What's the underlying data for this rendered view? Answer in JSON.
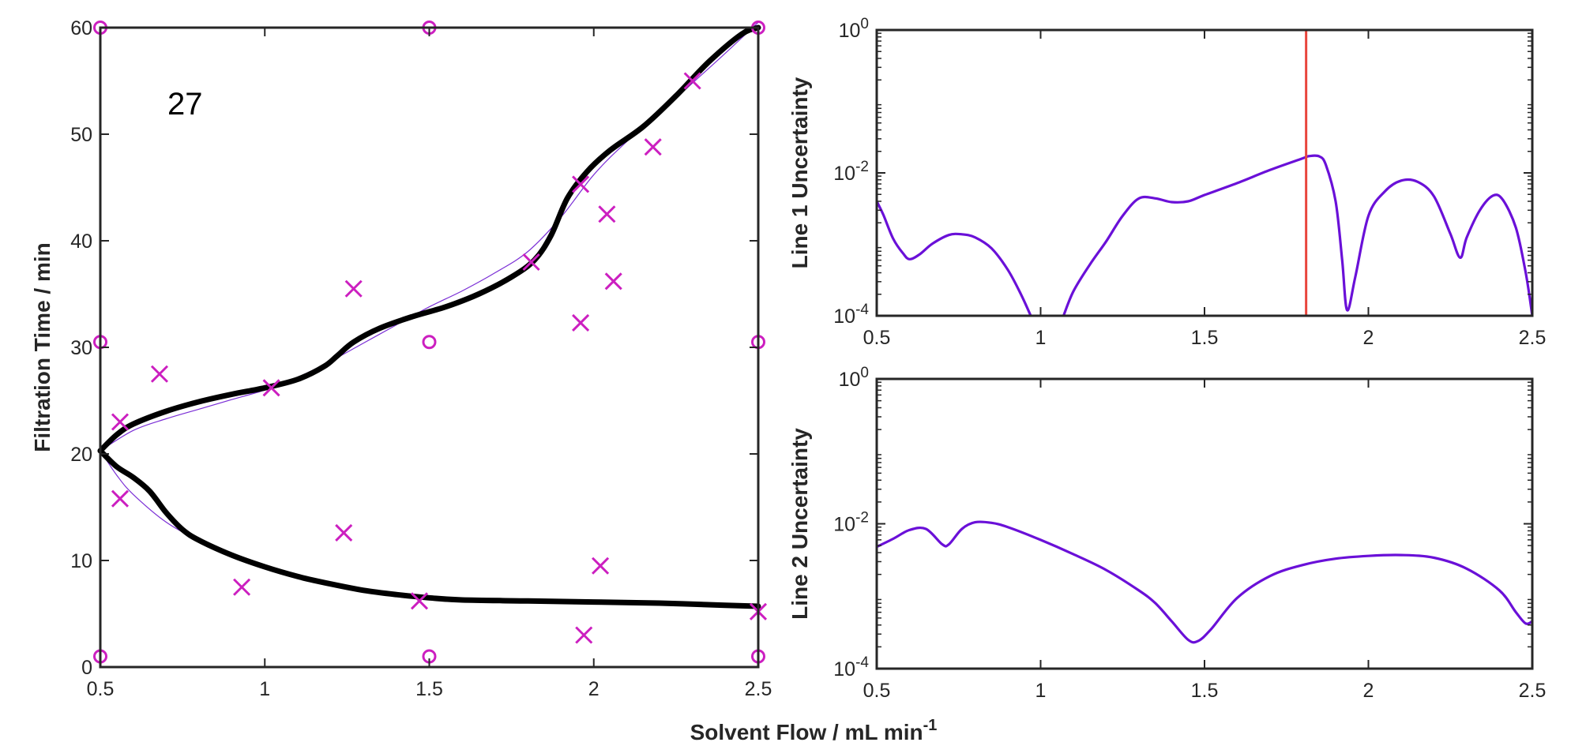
{
  "figure": {
    "xlabel_main": "Solvent Flow / mL min",
    "xlabel_sup": "-1"
  },
  "colors": {
    "axes": "#262626",
    "marker": "#cc1fc0",
    "fit_curve": "#000000",
    "true_curve": "#7b2fd6",
    "uncertainty": "#6a10d8",
    "cursor": "#e8453c"
  },
  "chart_data": [
    {
      "id": "main",
      "type": "scatter",
      "title": "",
      "xlabel": "",
      "ylabel": "Filtration Time / min",
      "xlim": [
        0.5,
        2.5
      ],
      "ylim": [
        0,
        60
      ],
      "xticks": [
        0.5,
        1,
        1.5,
        2,
        2.5
      ],
      "xtick_labels": [
        "0.5",
        "1",
        "1.5",
        "2",
        "2.5"
      ],
      "yticks": [
        0,
        10,
        20,
        30,
        40,
        50,
        60
      ],
      "ytick_labels": [
        "0",
        "10",
        "20",
        "30",
        "40",
        "50",
        "60"
      ],
      "annotation": "27",
      "grid": false,
      "circle_markers": [
        [
          0.5,
          60
        ],
        [
          1.5,
          60
        ],
        [
          2.5,
          60
        ],
        [
          0.5,
          30.5
        ],
        [
          1.5,
          30.5
        ],
        [
          2.5,
          30.5
        ],
        [
          0.5,
          1
        ],
        [
          1.5,
          1
        ],
        [
          2.5,
          1
        ]
      ],
      "cross_markers": [
        [
          0.56,
          23
        ],
        [
          0.56,
          15.8
        ],
        [
          0.68,
          27.5
        ],
        [
          0.93,
          7.5
        ],
        [
          1.02,
          26.2
        ],
        [
          1.24,
          12.6
        ],
        [
          1.27,
          35.5
        ],
        [
          1.47,
          6.2
        ],
        [
          1.81,
          38
        ],
        [
          1.96,
          32.3
        ],
        [
          1.96,
          45.3
        ],
        [
          1.97,
          3
        ],
        [
          2.02,
          9.5
        ],
        [
          2.04,
          42.5
        ],
        [
          2.06,
          36.2
        ],
        [
          2.18,
          48.8
        ],
        [
          2.3,
          55
        ],
        [
          2.5,
          5.2
        ]
      ],
      "fit_upper": [
        [
          0.5,
          20.3
        ],
        [
          0.55,
          21.8
        ],
        [
          0.6,
          22.8
        ],
        [
          0.7,
          24.0
        ],
        [
          0.8,
          24.9
        ],
        [
          0.9,
          25.6
        ],
        [
          1.0,
          26.2
        ],
        [
          1.1,
          27.0
        ],
        [
          1.18,
          28.2
        ],
        [
          1.22,
          29.2
        ],
        [
          1.27,
          30.5
        ],
        [
          1.35,
          31.8
        ],
        [
          1.45,
          32.9
        ],
        [
          1.55,
          33.8
        ],
        [
          1.65,
          35.0
        ],
        [
          1.75,
          36.6
        ],
        [
          1.82,
          38.2
        ],
        [
          1.87,
          40.5
        ],
        [
          1.92,
          44.0
        ],
        [
          1.98,
          46.5
        ],
        [
          2.05,
          48.5
        ],
        [
          2.15,
          50.7
        ],
        [
          2.25,
          53.6
        ],
        [
          2.35,
          56.8
        ],
        [
          2.45,
          59.4
        ],
        [
          2.5,
          60
        ]
      ],
      "fit_lower": [
        [
          0.5,
          20.3
        ],
        [
          0.55,
          18.8
        ],
        [
          0.6,
          17.8
        ],
        [
          0.65,
          16.5
        ],
        [
          0.7,
          14.5
        ],
        [
          0.75,
          12.9
        ],
        [
          0.8,
          11.9
        ],
        [
          0.9,
          10.5
        ],
        [
          1.0,
          9.4
        ],
        [
          1.1,
          8.5
        ],
        [
          1.2,
          7.8
        ],
        [
          1.3,
          7.2
        ],
        [
          1.4,
          6.8
        ],
        [
          1.5,
          6.5
        ],
        [
          1.6,
          6.3
        ],
        [
          1.8,
          6.2
        ],
        [
          2.0,
          6.1
        ],
        [
          2.2,
          6.0
        ],
        [
          2.4,
          5.8
        ],
        [
          2.5,
          5.7
        ]
      ],
      "true_upper": [
        [
          0.5,
          20.3
        ],
        [
          0.6,
          22.2
        ],
        [
          0.7,
          23.3
        ],
        [
          0.8,
          24.2
        ],
        [
          0.9,
          25.1
        ],
        [
          1.0,
          26.0
        ],
        [
          1.1,
          27.2
        ],
        [
          1.2,
          28.7
        ],
        [
          1.3,
          30.4
        ],
        [
          1.4,
          32.1
        ],
        [
          1.5,
          33.8
        ],
        [
          1.6,
          35.3
        ],
        [
          1.7,
          37.0
        ],
        [
          1.8,
          39.0
        ],
        [
          1.9,
          42.2
        ],
        [
          2.0,
          46.2
        ],
        [
          2.1,
          49.3
        ],
        [
          2.2,
          52.0
        ],
        [
          2.3,
          54.8
        ],
        [
          2.4,
          57.6
        ],
        [
          2.5,
          60.5
        ]
      ],
      "true_lower": [
        [
          0.5,
          20.3
        ],
        [
          0.55,
          18.0
        ],
        [
          0.6,
          16.2
        ],
        [
          0.7,
          13.6
        ],
        [
          0.8,
          11.9
        ],
        [
          0.9,
          10.6
        ],
        [
          1.0,
          9.5
        ],
        [
          1.1,
          8.6
        ],
        [
          1.2,
          7.9
        ],
        [
          1.3,
          7.3
        ],
        [
          1.4,
          6.9
        ],
        [
          1.5,
          6.6
        ],
        [
          1.7,
          6.2
        ],
        [
          1.9,
          6.0
        ],
        [
          2.1,
          5.9
        ],
        [
          2.3,
          5.85
        ],
        [
          2.5,
          5.8
        ]
      ]
    },
    {
      "id": "line1",
      "type": "line",
      "title": "",
      "ylabel": "Line 1 Uncertainty",
      "yscale": "log",
      "xlim": [
        0.5,
        2.5
      ],
      "ylim": [
        0.0001,
        1
      ],
      "xticks": [
        0.5,
        1,
        1.5,
        2,
        2.5
      ],
      "xtick_labels": [
        "0.5",
        "1",
        "1.5",
        "2",
        "2.5"
      ],
      "yticks": [
        0.0001,
        0.01,
        1
      ],
      "ytick_bases": [
        "10",
        "10",
        "10"
      ],
      "ytick_exps": [
        "-4",
        "-2",
        "0"
      ],
      "cursor_x": 1.81,
      "grid": false,
      "series": [
        {
          "segments": [
            [
              [
                0.5,
                0.004
              ],
              [
                0.52,
                0.0026
              ],
              [
                0.55,
                0.0012
              ],
              [
                0.58,
                0.00075
              ],
              [
                0.6,
                0.00062
              ],
              [
                0.63,
                0.00072
              ],
              [
                0.67,
                0.00102
              ],
              [
                0.72,
                0.00135
              ],
              [
                0.76,
                0.00138
              ],
              [
                0.8,
                0.00125
              ],
              [
                0.85,
                0.00088
              ],
              [
                0.9,
                0.00044
              ],
              [
                0.94,
                0.0002
              ],
              [
                0.97,
                0.0001
              ]
            ],
            [
              [
                1.07,
                0.0001
              ],
              [
                1.1,
                0.00022
              ],
              [
                1.15,
                0.00052
              ],
              [
                1.2,
                0.0011
              ],
              [
                1.25,
                0.0025
              ],
              [
                1.3,
                0.0044
              ],
              [
                1.35,
                0.0044
              ],
              [
                1.4,
                0.0039
              ],
              [
                1.45,
                0.004
              ],
              [
                1.5,
                0.0049
              ],
              [
                1.6,
                0.0072
              ],
              [
                1.7,
                0.011
              ],
              [
                1.8,
                0.016
              ],
              [
                1.82,
                0.0172
              ],
              [
                1.85,
                0.017
              ],
              [
                1.87,
                0.013
              ],
              [
                1.9,
                0.004
              ],
              [
                1.92,
                0.0006
              ],
              [
                1.935,
                0.00012
              ],
              [
                1.96,
                0.00035
              ],
              [
                2.0,
                0.0025
              ],
              [
                2.05,
                0.0055
              ],
              [
                2.1,
                0.0078
              ],
              [
                2.15,
                0.0075
              ],
              [
                2.2,
                0.0047
              ],
              [
                2.25,
                0.0014
              ],
              [
                2.28,
                0.00065
              ],
              [
                2.3,
                0.00125
              ],
              [
                2.34,
                0.003
              ],
              [
                2.38,
                0.0048
              ],
              [
                2.41,
                0.0042
              ],
              [
                2.45,
                0.0017
              ],
              [
                2.48,
                0.0004
              ],
              [
                2.5,
                0.0001
              ]
            ]
          ]
        }
      ]
    },
    {
      "id": "line2",
      "type": "line",
      "title": "",
      "ylabel": "Line 2 Uncertainty",
      "yscale": "log",
      "xlim": [
        0.5,
        2.5
      ],
      "ylim": [
        0.0001,
        1
      ],
      "xticks": [
        0.5,
        1,
        1.5,
        2,
        2.5
      ],
      "xtick_labels": [
        "0.5",
        "1",
        "1.5",
        "2",
        "2.5"
      ],
      "yticks": [
        0.0001,
        0.01,
        1
      ],
      "ytick_bases": [
        "10",
        "10",
        "10"
      ],
      "ytick_exps": [
        "-4",
        "-2",
        "0"
      ],
      "grid": false,
      "series": [
        {
          "segments": [
            [
              [
                0.5,
                0.0048
              ],
              [
                0.55,
                0.0062
              ],
              [
                0.6,
                0.0082
              ],
              [
                0.65,
                0.0085
              ],
              [
                0.7,
                0.0052
              ],
              [
                0.72,
                0.0052
              ],
              [
                0.76,
                0.0085
              ],
              [
                0.8,
                0.0105
              ],
              [
                0.85,
                0.0103
              ],
              [
                0.9,
                0.009
              ],
              [
                1.0,
                0.006
              ],
              [
                1.1,
                0.0038
              ],
              [
                1.2,
                0.0023
              ],
              [
                1.3,
                0.0012
              ],
              [
                1.35,
                0.0008
              ],
              [
                1.4,
                0.00045
              ],
              [
                1.45,
                0.00025
              ],
              [
                1.48,
                0.00024
              ],
              [
                1.52,
                0.00035
              ],
              [
                1.6,
                0.00095
              ],
              [
                1.7,
                0.0019
              ],
              [
                1.8,
                0.0027
              ],
              [
                1.9,
                0.0033
              ],
              [
                2.0,
                0.0036
              ],
              [
                2.1,
                0.0037
              ],
              [
                2.2,
                0.0034
              ],
              [
                2.3,
                0.0024
              ],
              [
                2.4,
                0.0012
              ],
              [
                2.45,
                0.0006
              ],
              [
                2.48,
                0.00042
              ],
              [
                2.5,
                0.00045
              ]
            ]
          ]
        }
      ]
    }
  ]
}
